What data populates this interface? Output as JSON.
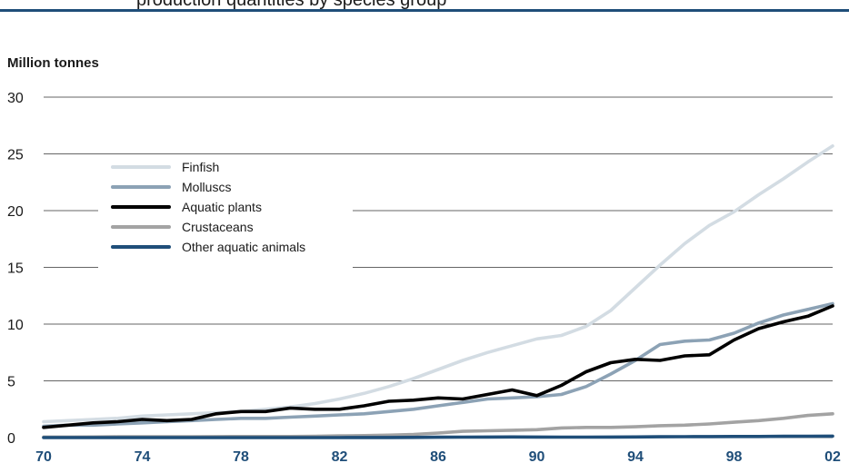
{
  "header": {
    "clipped_title": "production quantities by species group"
  },
  "chart_data": {
    "type": "line",
    "title": "",
    "ylabel": "Million tonnes",
    "xlabel": "",
    "ylim": [
      0,
      30
    ],
    "xlim": [
      1970,
      2002
    ],
    "yticks": [
      "0",
      "5",
      "10",
      "15",
      "20",
      "25",
      "30"
    ],
    "xticks": [
      {
        "value": 1970,
        "label": "70"
      },
      {
        "value": 1974,
        "label": "74"
      },
      {
        "value": 1978,
        "label": "78"
      },
      {
        "value": 1982,
        "label": "82"
      },
      {
        "value": 1986,
        "label": "86"
      },
      {
        "value": 1990,
        "label": "90"
      },
      {
        "value": 1994,
        "label": "94"
      },
      {
        "value": 1998,
        "label": "98"
      },
      {
        "value": 2002,
        "label": "02"
      }
    ],
    "grid": true,
    "legend_position": "upper-left",
    "x": [
      1970,
      1971,
      1972,
      1973,
      1974,
      1975,
      1976,
      1977,
      1978,
      1979,
      1980,
      1981,
      1982,
      1983,
      1984,
      1985,
      1986,
      1987,
      1988,
      1989,
      1990,
      1991,
      1992,
      1993,
      1994,
      1995,
      1996,
      1997,
      1998,
      1999,
      2000,
      2001,
      2002
    ],
    "series": [
      {
        "name": "Finfish",
        "color": "#d3dce3",
        "values": [
          1.4,
          1.5,
          1.6,
          1.7,
          1.9,
          2.0,
          2.1,
          2.2,
          2.3,
          2.5,
          2.7,
          3.0,
          3.4,
          3.9,
          4.5,
          5.2,
          6.0,
          6.8,
          7.5,
          8.1,
          8.7,
          9.0,
          9.8,
          11.2,
          13.2,
          15.2,
          17.1,
          18.7,
          19.9,
          21.4,
          22.8,
          24.3,
          25.7
        ]
      },
      {
        "name": "Molluscs",
        "color": "#8ca2b5",
        "values": [
          1.0,
          1.1,
          1.1,
          1.2,
          1.3,
          1.4,
          1.5,
          1.6,
          1.7,
          1.7,
          1.8,
          1.9,
          2.0,
          2.1,
          2.3,
          2.5,
          2.8,
          3.1,
          3.4,
          3.5,
          3.6,
          3.8,
          4.5,
          5.6,
          6.8,
          8.2,
          8.5,
          8.6,
          9.2,
          10.1,
          10.8,
          11.3,
          11.8
        ]
      },
      {
        "name": "Aquatic plants",
        "color": "#000000",
        "values": [
          0.9,
          1.1,
          1.3,
          1.4,
          1.6,
          1.5,
          1.6,
          2.1,
          2.3,
          2.3,
          2.6,
          2.5,
          2.5,
          2.8,
          3.2,
          3.3,
          3.5,
          3.4,
          3.8,
          4.2,
          3.7,
          4.6,
          5.8,
          6.6,
          6.9,
          6.8,
          7.2,
          7.3,
          8.6,
          9.6,
          10.2,
          10.7,
          11.6
        ]
      },
      {
        "name": "Crustaceans",
        "color": "#a3a3a3",
        "values": [
          0.05,
          0.05,
          0.06,
          0.07,
          0.07,
          0.08,
          0.08,
          0.09,
          0.1,
          0.1,
          0.1,
          0.12,
          0.15,
          0.18,
          0.22,
          0.28,
          0.4,
          0.55,
          0.6,
          0.65,
          0.7,
          0.85,
          0.9,
          0.9,
          0.95,
          1.05,
          1.1,
          1.2,
          1.35,
          1.5,
          1.7,
          1.95,
          2.1
        ]
      },
      {
        "name": "Other aquatic animals",
        "color": "#1f4e79",
        "values": [
          0.0,
          0.0,
          0.0,
          0.0,
          0.0,
          0.0,
          0.0,
          0.0,
          0.0,
          0.0,
          0.0,
          0.0,
          0.0,
          0.01,
          0.01,
          0.02,
          0.03,
          0.04,
          0.05,
          0.06,
          0.05,
          0.04,
          0.04,
          0.05,
          0.06,
          0.07,
          0.08,
          0.09,
          0.1,
          0.1,
          0.11,
          0.12,
          0.13
        ]
      }
    ]
  }
}
